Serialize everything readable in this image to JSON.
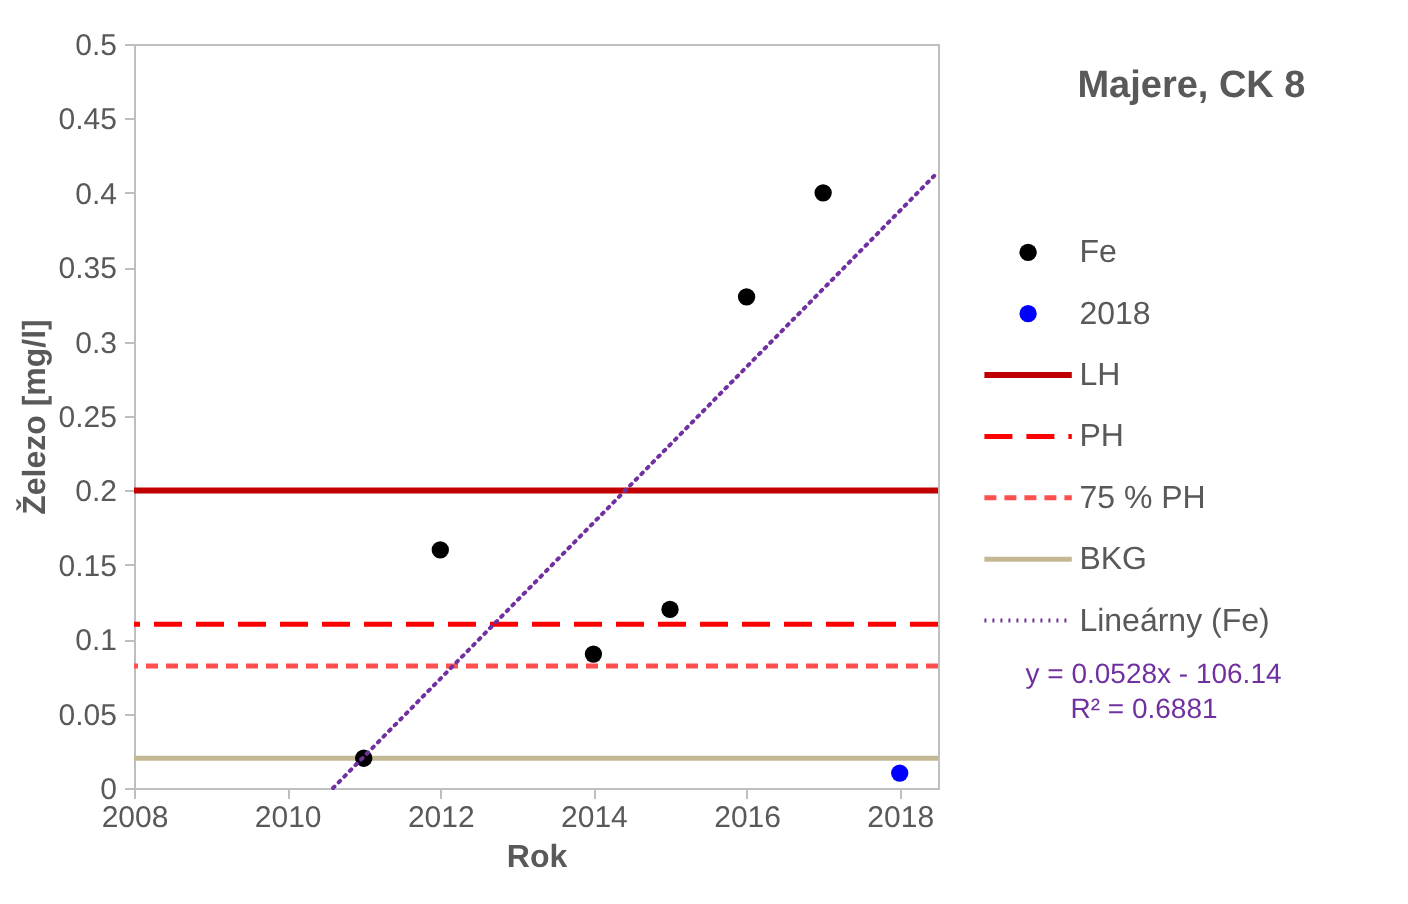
{
  "chart_data": {
    "type": "scatter",
    "title": "Majere, CK 8",
    "xlabel": "Rok",
    "ylabel": "Železo [mg/l]",
    "xlim": [
      2008,
      2018.5
    ],
    "xticks": [
      2008,
      2010,
      2012,
      2014,
      2016,
      2018
    ],
    "ylim": [
      0,
      0.5
    ],
    "yticks": [
      0,
      0.05,
      0.1,
      0.15,
      0.2,
      0.25,
      0.3,
      0.35,
      0.4,
      0.45,
      0.5
    ],
    "series": [
      {
        "name": "Fe",
        "color": "#000000",
        "x": [
          2011,
          2012,
          2014,
          2015,
          2016,
          2017
        ],
        "values": [
          0.02,
          0.16,
          0.09,
          0.12,
          0.33,
          0.4
        ]
      },
      {
        "name": "2018",
        "color": "#0000ff",
        "x": [
          2018
        ],
        "values": [
          0.01
        ]
      },
      {
        "name": "Lineárny (Fe)",
        "type": "line",
        "color": "#7030a0",
        "line_style": "dotted",
        "x": [
          2010.6,
          2018.5
        ],
        "values": [
          0,
          0.414
        ]
      }
    ],
    "ref_lines": [
      {
        "axis": "y",
        "value": 0.2,
        "label": "LH",
        "color": "#c00000",
        "line_style": "solid"
      },
      {
        "axis": "y",
        "value": 0.11,
        "label": "PH",
        "color": "#ff0000",
        "line_style": "dashed"
      },
      {
        "axis": "y",
        "value": 0.082,
        "label": "75 % PH",
        "color": "#ff5050",
        "line_style": "dashed"
      },
      {
        "axis": "y",
        "value": 0.02,
        "label": "BKG",
        "color": "#c4b894",
        "line_style": "solid"
      }
    ],
    "annotations": [
      "y = 0.0528x - 106.14",
      "R² = 0.6881"
    ],
    "legend": "right",
    "grid": false
  }
}
